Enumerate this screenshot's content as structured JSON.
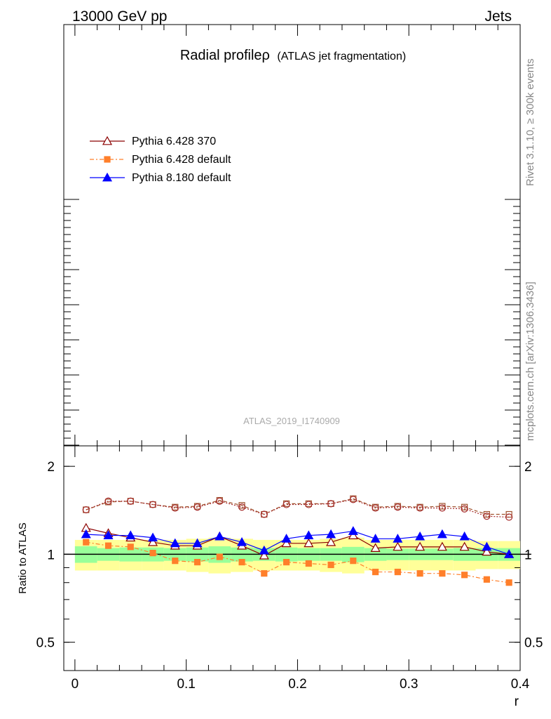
{
  "header": {
    "left": "13000 GeV pp",
    "right": "Jets"
  },
  "side": {
    "top": "Rivet 3.1.10, ≥ 300k events",
    "bottom": "mcplots.cern.ch [arXiv:1306.3436]"
  },
  "watermark": "ATLAS_2019_I1740909",
  "chart_data": {
    "type": "line",
    "title": "Radial profileρ",
    "title_suffix": "(ATLAS jet fragmentation)",
    "xlabel": "r",
    "ylabel": "Ratio to ATLAS",
    "xlim": [
      -0.01,
      0.4
    ],
    "ylim": [
      0.4,
      2.35
    ],
    "y_log": true,
    "x_ticks": [
      {
        "v": 0,
        "label": "0"
      },
      {
        "v": 0.1,
        "label": "0.1"
      },
      {
        "v": 0.2,
        "label": "0.2"
      },
      {
        "v": 0.3,
        "label": "0.3"
      },
      {
        "v": 0.4,
        "label": "0.4"
      }
    ],
    "y_ticks": [
      {
        "v": 0.5,
        "label": "0.5"
      },
      {
        "v": 1,
        "label": "1"
      },
      {
        "v": 2,
        "label": "2"
      }
    ],
    "legend_position": "top-left",
    "x": [
      0.01,
      0.03,
      0.05,
      0.07,
      0.09,
      0.11,
      0.13,
      0.15,
      0.17,
      0.19,
      0.21,
      0.23,
      0.25,
      0.27,
      0.29,
      0.31,
      0.33,
      0.35,
      0.37,
      0.39
    ],
    "reference_band": {
      "inner": [
        0.065,
        0.05,
        0.055,
        0.055,
        0.05,
        0.055,
        0.065,
        0.055,
        0.05,
        0.055,
        0.05,
        0.05,
        0.06,
        0.05,
        0.045,
        0.045,
        0.045,
        0.05,
        0.05,
        0.05
      ],
      "outer": [
        0.12,
        0.12,
        0.12,
        0.12,
        0.12,
        0.13,
        0.14,
        0.13,
        0.12,
        0.12,
        0.12,
        0.13,
        0.14,
        0.12,
        0.12,
        0.12,
        0.12,
        0.12,
        0.11,
        0.11
      ],
      "inner_color": "#99ff99",
      "outer_color": "#ffff99"
    },
    "series": [
      {
        "name": "Pythia 6.428 370",
        "color": "#8b0000",
        "marker": "triangle-open",
        "line": "solid",
        "values": [
          1.23,
          1.18,
          1.14,
          1.1,
          1.07,
          1.07,
          1.15,
          1.07,
          0.99,
          1.09,
          1.09,
          1.1,
          1.16,
          1.05,
          1.06,
          1.06,
          1.06,
          1.06,
          1.02,
          1.0
        ]
      },
      {
        "name": "Pythia 6.428 default",
        "color": "#ff7f2a",
        "marker": "square",
        "line": "dashdot",
        "values": [
          1.1,
          1.07,
          1.06,
          1.01,
          0.95,
          0.94,
          0.98,
          0.94,
          0.86,
          0.94,
          0.93,
          0.92,
          0.95,
          0.87,
          0.87,
          0.86,
          0.86,
          0.85,
          0.82,
          0.8
        ]
      },
      {
        "name": "Pythia 8.180 default",
        "color": "#0000ff",
        "marker": "triangle",
        "line": "solid",
        "values": [
          1.17,
          1.16,
          1.16,
          1.14,
          1.09,
          1.09,
          1.15,
          1.1,
          1.03,
          1.13,
          1.16,
          1.17,
          1.2,
          1.13,
          1.13,
          1.15,
          1.17,
          1.15,
          1.06,
          1.0
        ]
      }
    ],
    "extra_series": [
      {
        "color": "#a0522d",
        "marker": "square-open",
        "line": "dashed",
        "values": [
          1.42,
          1.51,
          1.52,
          1.48,
          1.45,
          1.46,
          1.53,
          1.47,
          1.37,
          1.49,
          1.49,
          1.49,
          1.55,
          1.45,
          1.46,
          1.45,
          1.46,
          1.45,
          1.37,
          1.37
        ]
      },
      {
        "color": "#a52a2a",
        "marker": "circle-open",
        "line": "dotted",
        "values": [
          1.42,
          1.52,
          1.52,
          1.48,
          1.44,
          1.45,
          1.52,
          1.45,
          1.37,
          1.48,
          1.48,
          1.49,
          1.54,
          1.44,
          1.45,
          1.44,
          1.44,
          1.43,
          1.35,
          1.34
        ]
      }
    ]
  }
}
